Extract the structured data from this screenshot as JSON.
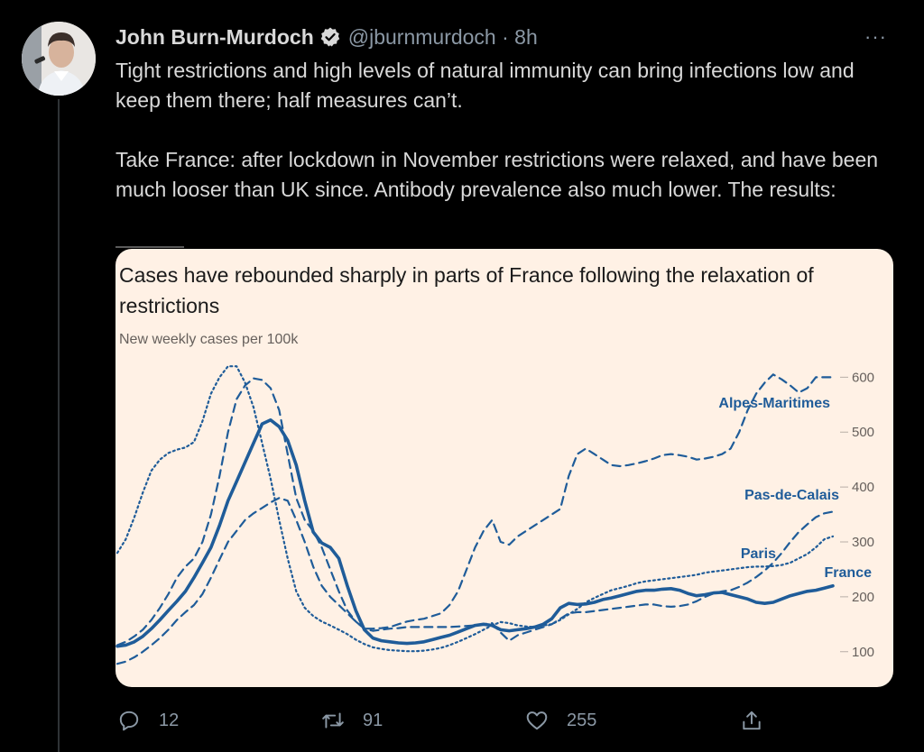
{
  "tweet": {
    "author_name": "John Burn-Murdoch",
    "handle_time": "@jburnmurdoch · 8h",
    "more_label": "···",
    "paragraph_1": "Tight restrictions and high levels of natural immunity can bring infections low and keep them there; half measures can’t.",
    "paragraph_2": "Take France: after lockdown in November restrictions were relaxed, and have been much looser than UK since. Antibody prevalence also much lower. The results:"
  },
  "actions": {
    "reply_count": "12",
    "retweet_count": "91",
    "like_count": "255"
  },
  "icons": {
    "verified": "verified-badge-icon",
    "more": "more-dots-icon",
    "reply": "reply-icon",
    "retweet": "retweet-icon",
    "like": "heart-icon",
    "share": "share-icon"
  },
  "colors": {
    "background": "#000000",
    "text": "#d9d9d9",
    "muted": "#8b98a5",
    "card_bg": "#fff1e5",
    "series": "#1f5c99"
  },
  "chart_data": {
    "type": "line",
    "title": "Cases have rebounded sharply in parts of France following the relaxation of restrictions",
    "subtitle": "New weekly cases per 100k",
    "xlabel": "",
    "ylabel": "",
    "ylim": [
      75,
      640
    ],
    "yticks": [
      100,
      200,
      300,
      400,
      500,
      600
    ],
    "grid": false,
    "legend": "direct labels at line ends",
    "x": [
      0,
      1,
      2,
      3,
      4,
      5,
      6,
      7,
      8,
      9,
      10,
      11,
      12,
      13,
      14,
      15,
      16,
      17,
      18,
      19,
      20,
      21,
      22,
      23,
      24,
      25,
      26,
      27,
      28,
      29,
      30,
      31,
      32,
      33,
      34,
      35,
      36,
      37,
      38,
      39,
      40,
      41,
      42,
      43,
      44,
      45,
      46,
      47,
      48,
      49,
      50,
      51,
      52,
      53,
      54,
      55,
      56,
      57,
      58,
      59,
      60,
      61,
      62,
      63,
      64,
      65,
      66,
      67,
      68,
      69,
      70,
      71,
      72,
      73,
      74,
      75,
      76,
      77,
      78,
      79,
      80,
      81,
      82,
      83,
      84
    ],
    "series": [
      {
        "name": "France",
        "style": "solid",
        "values": [
          110,
          112,
          118,
          128,
          142,
          158,
          175,
          192,
          210,
          235,
          262,
          290,
          330,
          375,
          410,
          445,
          480,
          515,
          522,
          510,
          485,
          440,
          375,
          318,
          298,
          290,
          270,
          220,
          175,
          140,
          125,
          120,
          118,
          116,
          115,
          116,
          118,
          122,
          126,
          130,
          136,
          142,
          148,
          150,
          148,
          140,
          138,
          140,
          142,
          145,
          150,
          160,
          180,
          188,
          186,
          187,
          190,
          195,
          198,
          202,
          206,
          210,
          212,
          212,
          214,
          215,
          212,
          206,
          202,
          204,
          207,
          208,
          204,
          200,
          196,
          190,
          188,
          190,
          196,
          202,
          206,
          210,
          212,
          216,
          220
        ]
      },
      {
        "name": "Alpes-Maritimes",
        "style": "dashed",
        "values": [
          112,
          118,
          128,
          140,
          158,
          180,
          205,
          235,
          255,
          270,
          300,
          350,
          420,
          500,
          560,
          585,
          598,
          595,
          580,
          540,
          460,
          380,
          340,
          320,
          290,
          250,
          210,
          175,
          155,
          142,
          142,
          143,
          145,
          150,
          155,
          158,
          160,
          165,
          170,
          185,
          210,
          250,
          290,
          320,
          340,
          300,
          295,
          310,
          320,
          330,
          340,
          350,
          360,
          420,
          460,
          470,
          460,
          450,
          440,
          438,
          440,
          443,
          447,
          452,
          458,
          460,
          458,
          455,
          450,
          452,
          455,
          460,
          470,
          500,
          540,
          570,
          590,
          605,
          596,
          585,
          572,
          580,
          600,
          600,
          600
        ]
      },
      {
        "name": "Pas-de-Calais",
        "style": "dashed",
        "values": [
          78,
          82,
          90,
          100,
          112,
          125,
          140,
          158,
          172,
          185,
          205,
          235,
          268,
          300,
          320,
          340,
          352,
          362,
          372,
          380,
          375,
          340,
          300,
          255,
          220,
          200,
          185,
          170,
          155,
          142,
          138,
          140,
          142,
          143,
          145,
          145,
          145,
          145,
          145,
          145,
          146,
          147,
          148,
          150,
          152,
          135,
          120,
          130,
          135,
          140,
          145,
          150,
          160,
          170,
          172,
          172,
          174,
          176,
          178,
          180,
          182,
          184,
          186,
          186,
          183,
          182,
          183,
          186,
          192,
          200,
          206,
          210,
          212,
          218,
          226,
          236,
          248,
          262,
          280,
          300,
          318,
          332,
          345,
          352,
          355
        ]
      },
      {
        "name": "Paris",
        "style": "dotted",
        "values": [
          280,
          305,
          345,
          390,
          430,
          450,
          462,
          468,
          472,
          482,
          520,
          570,
          600,
          620,
          620,
          590,
          545,
          480,
          415,
          340,
          270,
          210,
          180,
          165,
          155,
          148,
          140,
          132,
          122,
          114,
          108,
          105,
          103,
          102,
          101,
          101,
          102,
          104,
          107,
          112,
          118,
          125,
          132,
          140,
          148,
          154,
          152,
          148,
          146,
          145,
          148,
          150,
          158,
          168,
          178,
          190,
          198,
          205,
          212,
          216,
          220,
          225,
          228,
          230,
          232,
          234,
          236,
          238,
          240,
          244,
          246,
          248,
          250,
          252,
          254,
          255,
          255,
          256,
          258,
          262,
          270,
          278,
          290,
          305,
          310
        ]
      }
    ]
  }
}
